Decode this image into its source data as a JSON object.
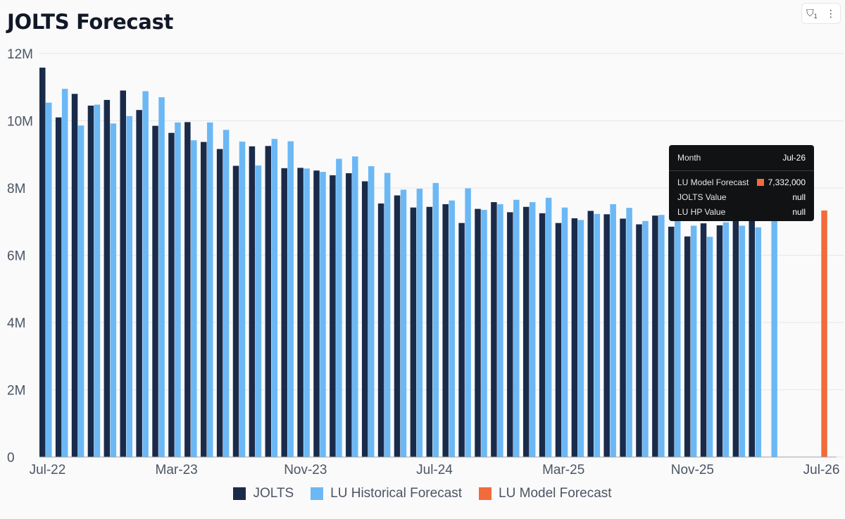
{
  "title": "JOLTS Forecast",
  "toolbar": {
    "filter_icon": "filter-icon",
    "filter_count": "1",
    "more_icon": "more-vertical-icon",
    "more_glyph": "⋮",
    "filter_glyph": "⛉"
  },
  "colors": {
    "jolts": "#1a2b4a",
    "historical": "#6cb8f5",
    "model": "#f26b3a",
    "grid": "#e6e7ea",
    "axis_text": "#4b5563"
  },
  "legend": [
    {
      "label": "JOLTS",
      "color": "#1a2b4a"
    },
    {
      "label": "LU Historical Forecast",
      "color": "#6cb8f5"
    },
    {
      "label": "LU Model Forecast",
      "color": "#f26b3a"
    }
  ],
  "tooltip": {
    "header_label": "Month",
    "header_value": "Jul-26",
    "rows": [
      {
        "label": "LU Model Forecast",
        "value": "7,332,000"
      },
      {
        "label": "JOLTS Value",
        "value": "null"
      },
      {
        "label": "LU HP Value",
        "value": "null"
      }
    ]
  },
  "chart_data": {
    "type": "bar",
    "title": "JOLTS Forecast",
    "ylim": [
      0,
      12000000
    ],
    "y_ticks": [
      {
        "value": 0,
        "label": "0"
      },
      {
        "value": 2000000,
        "label": "2M"
      },
      {
        "value": 4000000,
        "label": "4M"
      },
      {
        "value": 6000000,
        "label": "6M"
      },
      {
        "value": 8000000,
        "label": "8M"
      },
      {
        "value": 10000000,
        "label": "10M"
      },
      {
        "value": 12000000,
        "label": "12M"
      }
    ],
    "x_ticks": [
      {
        "index": 0,
        "label": "Jul-22"
      },
      {
        "index": 8,
        "label": "Mar-23"
      },
      {
        "index": 16,
        "label": "Nov-23"
      },
      {
        "index": 24,
        "label": "Jul-24"
      },
      {
        "index": 32,
        "label": "Mar-25"
      },
      {
        "index": 40,
        "label": "Nov-25"
      },
      {
        "index": 48,
        "label": "Jul-26"
      }
    ],
    "categories": [
      "Jul-22",
      "Aug-22",
      "Sep-22",
      "Oct-22",
      "Nov-22",
      "Dec-22",
      "Jan-23",
      "Feb-23",
      "Mar-23",
      "Apr-23",
      "May-23",
      "Jun-23",
      "Jul-23",
      "Aug-23",
      "Sep-23",
      "Oct-23",
      "Nov-23",
      "Dec-23",
      "Jan-24",
      "Feb-24",
      "Mar-24",
      "Apr-24",
      "May-24",
      "Jun-24",
      "Jul-24",
      "Aug-24",
      "Sep-24",
      "Oct-24",
      "Nov-24",
      "Dec-24",
      "Jan-25",
      "Feb-25",
      "Mar-25",
      "Apr-25",
      "May-25",
      "Jun-25",
      "Jul-25",
      "Aug-25",
      "Sep-25",
      "Oct-25",
      "Nov-25",
      "Dec-25",
      "Jan-26",
      "Feb-26",
      "Mar-26",
      "Apr-26",
      "May-26",
      "Jun-26",
      "Jul-26"
    ],
    "series": [
      {
        "name": "JOLTS",
        "values": [
          11580000,
          10100000,
          10800000,
          10450000,
          10620000,
          10900000,
          10320000,
          9850000,
          9640000,
          9960000,
          9370000,
          9160000,
          8660000,
          9240000,
          9250000,
          8590000,
          8600000,
          8520000,
          8380000,
          8440000,
          8200000,
          7540000,
          7780000,
          7420000,
          7440000,
          7520000,
          6960000,
          7380000,
          7580000,
          7280000,
          7440000,
          7250000,
          6960000,
          7100000,
          7320000,
          7220000,
          7090000,
          6920000,
          7180000,
          6850000,
          6560000,
          6950000,
          6890000,
          7100000,
          7150000,
          null,
          null,
          null,
          null
        ]
      },
      {
        "name": "LU Historical Forecast",
        "values": [
          10540000,
          10950000,
          9860000,
          10480000,
          9920000,
          10140000,
          10880000,
          10700000,
          9950000,
          9420000,
          9950000,
          9730000,
          9380000,
          8670000,
          9460000,
          9390000,
          8580000,
          8480000,
          8870000,
          8940000,
          8650000,
          8450000,
          7950000,
          7980000,
          8150000,
          7630000,
          7990000,
          7350000,
          7520000,
          7650000,
          7580000,
          7710000,
          7420000,
          7050000,
          7230000,
          7520000,
          7410000,
          7020000,
          7200000,
          7300000,
          6880000,
          6550000,
          6980000,
          6880000,
          6830000,
          7050000,
          null,
          null,
          null
        ]
      },
      {
        "name": "LU Model Forecast",
        "values": [
          null,
          null,
          null,
          null,
          null,
          null,
          null,
          null,
          null,
          null,
          null,
          null,
          null,
          null,
          null,
          null,
          null,
          null,
          null,
          null,
          null,
          null,
          null,
          null,
          null,
          null,
          null,
          null,
          null,
          null,
          null,
          null,
          null,
          null,
          null,
          null,
          null,
          null,
          null,
          null,
          null,
          null,
          null,
          null,
          null,
          null,
          null,
          null,
          7332000
        ]
      }
    ]
  }
}
